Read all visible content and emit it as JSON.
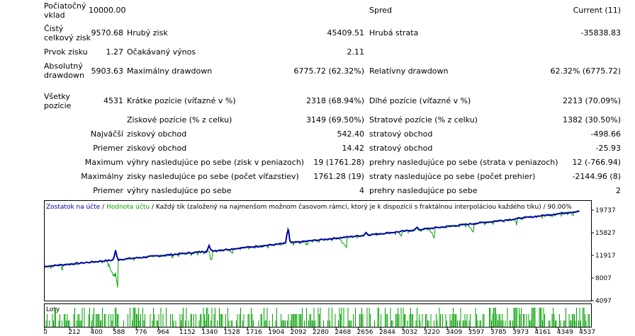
{
  "report": {
    "initial_deposit": {
      "label": "Počiatočný vklad",
      "value": "10000.00"
    },
    "spread": {
      "label": "Spred",
      "value": "Current (11)"
    },
    "net_profit": {
      "label": "Čistý celkový zisk",
      "value": "9570.68"
    },
    "gross_profit": {
      "label": "Hrubý zisk",
      "value": "45409.51"
    },
    "gross_loss": {
      "label": "Hrubá strata",
      "value": "-35838.83"
    },
    "profit_factor": {
      "label": "Prvok zisku",
      "value": "1.27"
    },
    "expected_payoff": {
      "label": "Očakávaný výnos",
      "value": "2.11"
    },
    "absolute_drawdown": {
      "label": "Absolutný drawdown",
      "value": "5903.63"
    },
    "maximal_drawdown": {
      "label": "Maximálny drawdown",
      "value": "6775.72 (62.32%)"
    },
    "relative_drawdown": {
      "label": "Relatívny drawdown",
      "value": "62.32% (6775.72)"
    },
    "total_trades": {
      "label": "Všetky pozície",
      "value": "4531"
    },
    "short_positions": {
      "label": "Krátke pozície (víťazné v %)",
      "value": "2318 (68.94%)"
    },
    "long_positions": {
      "label": "Dlhé pozície (víťazné v %)",
      "value": "2213 (70.09%)"
    },
    "profit_trades": {
      "label": "Ziskové pozície (% z celku)",
      "value": "3149 (69.50%)"
    },
    "loss_trades": {
      "label": "Stratové pozície (% z celku)",
      "value": "1382 (30.50%)"
    },
    "largest_label": "Najväčší",
    "largest_profit": {
      "label": "ziskový obchod",
      "value": "542.40"
    },
    "largest_loss": {
      "label": "stratový obchod",
      "value": "-498.66"
    },
    "average_label": "Priemer",
    "average_profit": {
      "label": "ziskový obchod",
      "value": "14.42"
    },
    "average_loss": {
      "label": "stratový obchod",
      "value": "-25.93"
    },
    "maximum_label": "Maximum",
    "max_consec_wins": {
      "label": "výhry nasledujúce po sebe (zisk v peniazoch)",
      "value": "19 (1761.28)"
    },
    "max_consec_losses": {
      "label": "prehry nasledujúce po sebe (strata v peniazoch)",
      "value": "12 (-766.94)"
    },
    "maximal_label": "Maximálny",
    "max_consec_profit": {
      "label": "zisky nasledujúce po sebe (počet víťazstiev)",
      "value": "1761.28 (19)"
    },
    "max_consec_loss": {
      "label": "straty nasledujúce po sebe (počet prehier)",
      "value": "-2144.96 (8)"
    },
    "avg_label": "Priemer",
    "avg_consec_wins": {
      "label": "výhry nasledujúce po sebe",
      "value": "4"
    },
    "avg_consec_losses": {
      "label": "prehry nasledujúce po sebe",
      "value": "2"
    }
  },
  "chart_legend": {
    "balance": "Zostatok na účte",
    "sep1": " / ",
    "equity": "Hodnota účtu",
    "rest": " / Každý tik (založený na najmenšom možnom časovom rámci, ktorý je k dispozícii s fraktálnou interpoláciou každého tiku) / 90.00%"
  },
  "colors": {
    "balance": "#0000a8",
    "equity": "#00a000",
    "lots": "#00a000",
    "grid": "#000000"
  },
  "chart_data": [
    {
      "type": "line",
      "series": [
        {
          "name": "Zostatok na účte",
          "color": "#0000a8",
          "x": [
            0,
            500,
            1000,
            1500,
            2000,
            2500,
            3000,
            3500,
            4000,
            4531
          ],
          "y": [
            10000,
            10950,
            11900,
            12850,
            13900,
            14950,
            16000,
            17100,
            18250,
            19570
          ]
        },
        {
          "name": "Hodnota účtu",
          "color": "#00a000",
          "x": [
            0,
            588,
            650,
            1340,
            1420,
            2560,
            2600,
            3250,
            3300,
            3590,
            3640,
            4537
          ],
          "y": [
            10000,
            10600,
            5400,
            12000,
            11100,
            15000,
            13700,
            16500,
            15200,
            17000,
            15700,
            19400
          ]
        }
      ],
      "y_ticks": [
        "19737",
        "15827",
        "11917",
        "8007",
        "4097"
      ],
      "ylim": [
        4097,
        19737
      ],
      "xlim": [
        0,
        4620
      ]
    },
    {
      "type": "bar",
      "title": "Loty",
      "x_ticks": [
        "0",
        "212",
        "400",
        "588",
        "776",
        "964",
        "1152",
        "1340",
        "1528",
        "1716",
        "1904",
        "2092",
        "2280",
        "2468",
        "2656",
        "2844",
        "3032",
        "3220",
        "3409",
        "3597",
        "3785",
        "3973",
        "4161",
        "4349",
        "4537"
      ],
      "xlim": [
        0,
        4620
      ]
    }
  ]
}
